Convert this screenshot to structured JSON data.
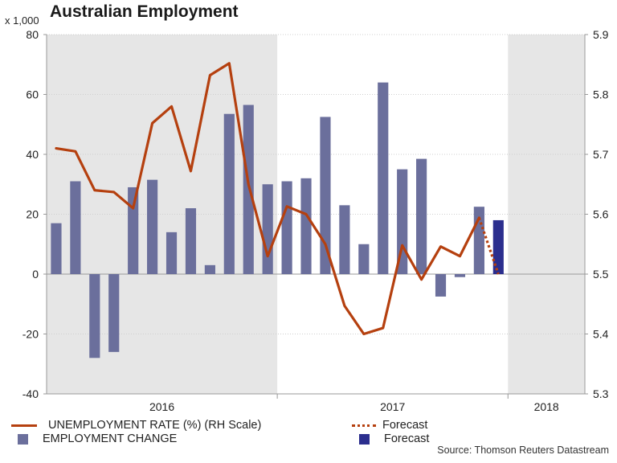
{
  "title": "Australian Employment",
  "source": "Source: Thomson Reuters Datastream",
  "colors": {
    "bar": "#6b6f9c",
    "bar_forecast": "#2b2e8e",
    "line": "#b5400f",
    "shade": "#e6e6e6",
    "grid": "#cfcfcf",
    "axis": "#999999",
    "text": "#222222"
  },
  "legend": {
    "rate_label": "UNEMPLOYMENT RATE (%) (RH Scale)",
    "change_label": "EMPLOYMENT CHANGE",
    "rate_forecast_label": "Forecast",
    "change_forecast_label": "Forecast"
  },
  "chart_data": {
    "type": "bar",
    "title": "Australian Employment",
    "left_axis": {
      "unit": "x 1,000",
      "ylim": [
        -40,
        80
      ],
      "ticks": [
        -40,
        -20,
        0,
        20,
        40,
        60,
        80
      ]
    },
    "right_axis": {
      "ylim": [
        5.3,
        5.9
      ],
      "ticks": [
        "5.3",
        "5.4",
        "5.5",
        "5.6",
        "5.7",
        "5.8",
        "5.9"
      ]
    },
    "n_months": 28,
    "year_labels": [
      {
        "label": "2016",
        "first_month": 0,
        "last_month": 11
      },
      {
        "label": "2017",
        "first_month": 12,
        "last_month": 23
      },
      {
        "label": "2018",
        "first_month": 24,
        "last_month": 27
      }
    ],
    "shaded_years": [
      "2016",
      "2018"
    ],
    "year_dividers": [
      12,
      24
    ],
    "series": [
      {
        "name": "EMPLOYMENT CHANGE",
        "axis": "left",
        "type": "bar",
        "start_month": 0,
        "values": [
          17,
          31,
          -28,
          -26,
          29,
          31.5,
          14,
          22,
          3,
          53.5,
          56.5,
          30,
          31,
          32,
          52.5,
          23,
          10,
          64,
          35,
          38.5,
          -7.5,
          -1,
          22.5,
          18
        ],
        "forecast_index": 23
      },
      {
        "name": "UNEMPLOYMENT RATE (%) (RH Scale)",
        "axis": "right",
        "type": "line",
        "start_month": 0,
        "values": [
          5.71,
          5.705,
          5.64,
          5.637,
          5.61,
          5.752,
          5.78,
          5.672,
          5.832,
          5.852,
          5.65,
          5.53,
          5.613,
          5.6,
          5.55,
          5.447,
          5.4,
          5.41,
          5.548,
          5.491,
          5.546,
          5.53,
          5.594,
          5.5
        ],
        "forecast_from_index": 22
      }
    ]
  }
}
